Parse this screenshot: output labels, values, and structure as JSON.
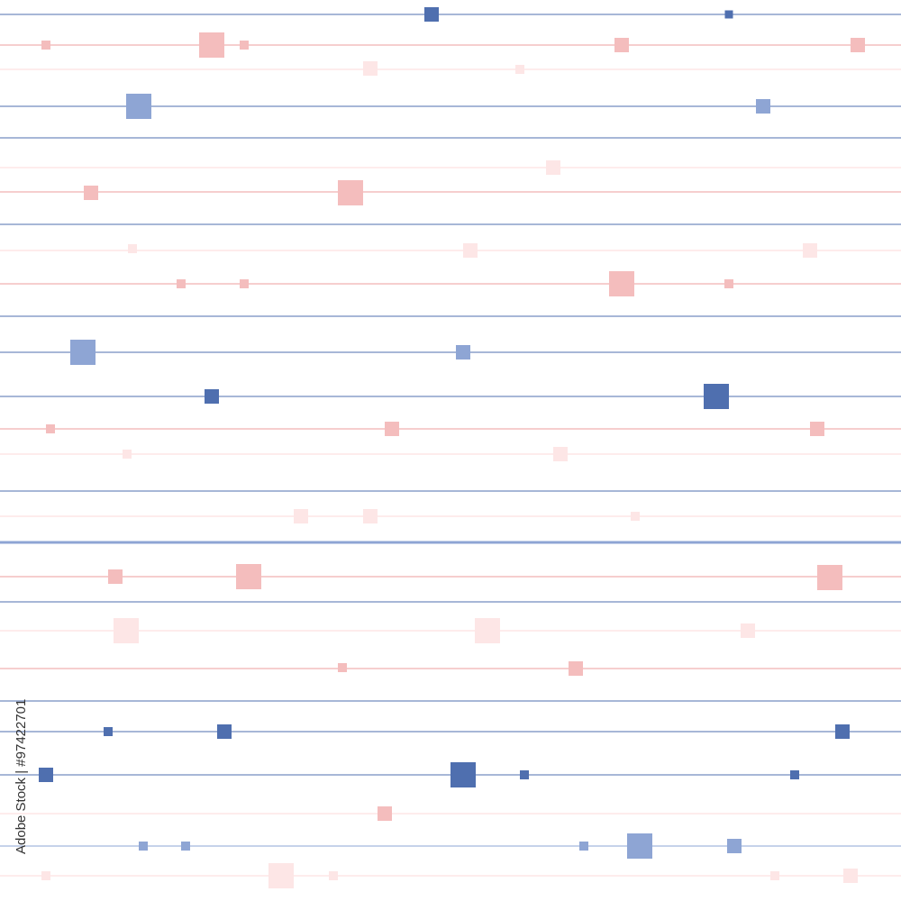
{
  "pattern": {
    "description_colors": {
      "navy": "#4f6faf",
      "mid_blue": "#8ea5d4",
      "pink": "#f4bdbd",
      "light_pink": "#fbd6d6",
      "pale_pink": "#fde6e6"
    }
  },
  "watermark": {
    "stock_id_text": "Adobe Stock | #97422701"
  }
}
